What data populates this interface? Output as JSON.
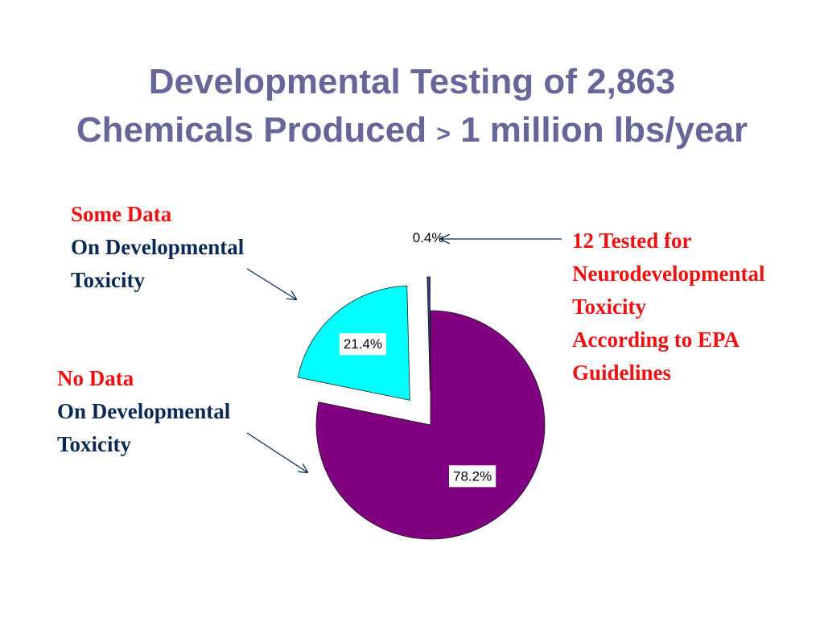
{
  "title": {
    "line1": "Developmental Testing of 2,863",
    "line2_pre": "Chemicals Produced ",
    "line2_gt": ">",
    "line2_post": " 1 million lbs/year"
  },
  "annotations": {
    "some_data": {
      "line1": "Some Data",
      "line2": "On Developmental",
      "line3": "Toxicity"
    },
    "no_data": {
      "line1": "No Data",
      "line2": "On Developmental",
      "line3": "Toxicity"
    },
    "neuro": {
      "line1": "12 Tested for",
      "line2": "Neurodevelopmental",
      "line3": "Toxicity",
      "line4": "According to EPA",
      "line5": "Guidelines"
    }
  },
  "chart_data": {
    "type": "pie",
    "categories": [
      "No Data On Developmental Toxicity",
      "Some Data On Developmental Toxicity",
      "12 Tested for Neurodevelopmental Toxicity According to EPA Guidelines"
    ],
    "values": [
      78.2,
      21.4,
      0.4
    ],
    "labels": [
      "78.2%",
      "21.4%",
      "0.4%"
    ],
    "colors": [
      "#800080",
      "#00ffff",
      "#2a3a8a"
    ],
    "start": "12 o'clock, clockwise",
    "exploded": [
      false,
      true,
      true
    ]
  }
}
